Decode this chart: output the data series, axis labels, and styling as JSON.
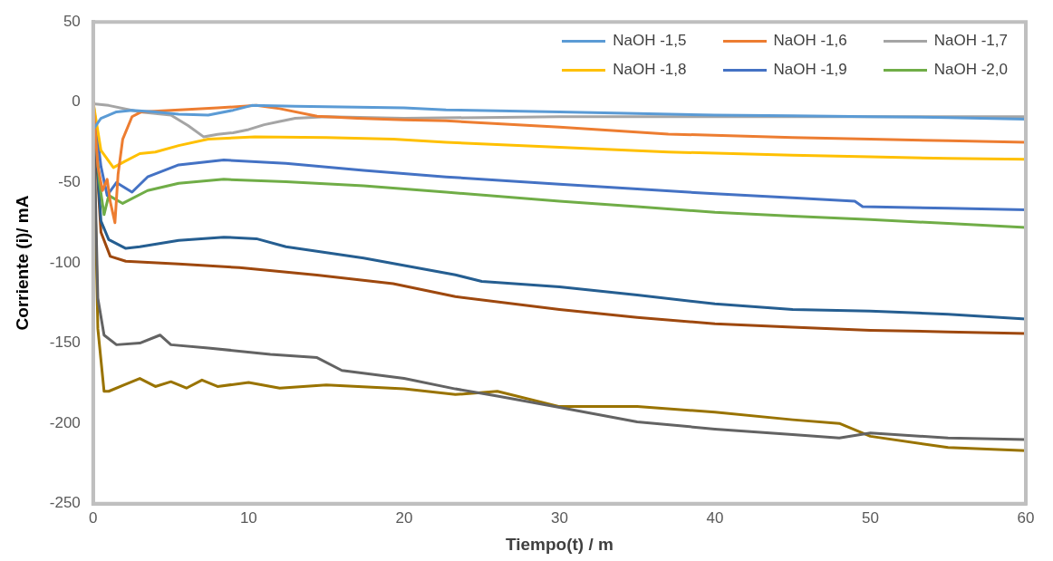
{
  "chart_data": {
    "type": "line",
    "xlabel": "Tiempo(t) / m",
    "ylabel": "Corriente (i)/ mA",
    "xlim": [
      0,
      60
    ],
    "xticks": [
      0,
      10,
      20,
      30,
      40,
      50,
      60
    ],
    "ylim": [
      -250,
      50
    ],
    "yticks": [
      50,
      0,
      -50,
      -100,
      -150,
      -200,
      -250
    ],
    "grid": false,
    "legend": "top right",
    "marker": "none",
    "line_style": "solid",
    "series": [
      {
        "name": "NaOH -1,5",
        "color": "#5b9bd5",
        "x": [
          0,
          0.5,
          1.5,
          2.5,
          4,
          5.5,
          7.4,
          9,
          10.2,
          13,
          16,
          20,
          22.7,
          30,
          35,
          40,
          45,
          50,
          55,
          60
        ],
        "values": [
          -17,
          -10,
          -6,
          -5,
          -6,
          -7.5,
          -8,
          -5,
          -2,
          -2.5,
          -3,
          -3.5,
          -4.7,
          -6,
          -7,
          -8,
          -8.5,
          -9,
          -9.5,
          -10.5
        ]
      },
      {
        "name": "NaOH -1,6",
        "color": "#ed7d31",
        "x": [
          0,
          0.3,
          0.6,
          0.9,
          1.1,
          1.4,
          1.6,
          1.9,
          2.5,
          3.1,
          5,
          8,
          10.5,
          12,
          14.4,
          17,
          20,
          22.7,
          30,
          37,
          45,
          50,
          55,
          60
        ],
        "values": [
          0,
          -40,
          -55,
          -48,
          -62,
          -75,
          -45,
          -23,
          -9,
          -6,
          -5,
          -3.5,
          -2,
          -4,
          -8.7,
          -10,
          -11,
          -11.6,
          -15.5,
          -19.8,
          -22,
          -23,
          -24,
          -25
        ]
      },
      {
        "name": "NaOH -1,7",
        "color": "#a5a5a5",
        "x": [
          0,
          1,
          3,
          5,
          6.1,
          7.1,
          8,
          9,
          10,
          11,
          12,
          13,
          15,
          20,
          25,
          30,
          40,
          50,
          60
        ],
        "values": [
          -1,
          -2,
          -6,
          -8,
          -14.5,
          -21.5,
          -20,
          -19,
          -17,
          -14,
          -12,
          -10,
          -9,
          -10,
          -9.5,
          -9,
          -9,
          -9,
          -9
        ]
      },
      {
        "name": "NaOH -1,8",
        "color": "#ffc000",
        "x": [
          0,
          0.5,
          1.3,
          2,
          3,
          4,
          5.5,
          7.4,
          10.4,
          15,
          19.3,
          22.7,
          30,
          37,
          45,
          50,
          55,
          60
        ],
        "values": [
          0,
          -30,
          -40.7,
          -37,
          -32,
          -31,
          -27,
          -23,
          -21.5,
          -22,
          -23,
          -25,
          -28,
          -31,
          -33,
          -34,
          -35,
          -35.5
        ]
      },
      {
        "name": "NaOH -1,9",
        "color": "#4472c4",
        "x": [
          0,
          0.5,
          0.9,
          1.5,
          2.5,
          3.5,
          5.5,
          8.4,
          12.4,
          17.4,
          22.7,
          30,
          35,
          40,
          45,
          49,
          49.5,
          55,
          60
        ],
        "values": [
          0,
          -40,
          -58,
          -50,
          -56,
          -46.5,
          -39,
          -36,
          -38,
          -42.5,
          -46.5,
          -51,
          -54,
          -57,
          -59.5,
          -61.6,
          -65,
          -66,
          -67
        ]
      },
      {
        "name": "NaOH -2,0",
        "color": "#70ad47",
        "x": [
          0,
          0.4,
          0.7,
          1,
          1.9,
          3.5,
          5.5,
          8.4,
          12.4,
          17.4,
          22.7,
          30,
          35,
          40,
          45,
          50,
          55,
          60
        ],
        "values": [
          0,
          -50,
          -70,
          -58,
          -63,
          -55,
          -50.5,
          -48,
          -49.5,
          -52,
          -56,
          -61.6,
          -65,
          -68.6,
          -71,
          -73,
          -75.5,
          -78
        ]
      },
      {
        "color": "#255e91",
        "x": [
          0,
          0.5,
          1,
          2.1,
          3,
          5.5,
          8.4,
          10.5,
          12.4,
          17.4,
          23.3,
          25,
          30,
          35,
          40,
          45,
          50,
          55,
          60
        ],
        "values": [
          0,
          -74,
          -85.5,
          -91,
          -90,
          -86,
          -84,
          -85,
          -90,
          -97,
          -107.5,
          -111.6,
          -115,
          -120,
          -125.6,
          -129,
          -130,
          -132,
          -135
        ]
      },
      {
        "color": "#9e480e",
        "x": [
          0,
          0.5,
          1.1,
          2.1,
          5.5,
          9.4,
          14.4,
          19.3,
          23.3,
          30,
          35,
          40,
          45,
          50,
          55,
          60
        ],
        "values": [
          0,
          -81,
          -96,
          -99,
          -100.7,
          -103,
          -107.6,
          -113,
          -121,
          -129,
          -134,
          -138,
          -140,
          -142,
          -143,
          -144
        ]
      },
      {
        "color": "#636363",
        "x": [
          0,
          0.3,
          0.7,
          1.5,
          3,
          4.3,
          5,
          7.4,
          11.4,
          14.4,
          16,
          20,
          23.3,
          26,
          30,
          35,
          40,
          45,
          48,
          50,
          55,
          60
        ],
        "values": [
          0,
          -122,
          -145,
          -151,
          -150,
          -145,
          -151,
          -153,
          -157,
          -159,
          -167,
          -172,
          -178.5,
          -183,
          -190,
          -199,
          -203.5,
          -207,
          -209,
          -206,
          -209,
          -210
        ]
      },
      {
        "color": "#997300",
        "x": [
          0,
          0.3,
          0.7,
          1,
          2,
          3,
          4,
          5,
          6,
          7,
          8,
          10,
          12,
          15,
          20,
          23.3,
          26,
          30,
          35,
          40,
          45,
          48,
          50,
          55,
          60
        ],
        "values": [
          0,
          -141,
          -180,
          -180,
          -176,
          -172,
          -177,
          -174,
          -178,
          -173,
          -177,
          -174.5,
          -178,
          -176,
          -178.5,
          -182,
          -180,
          -189.5,
          -189.5,
          -193,
          -197.7,
          -200,
          -208,
          -215,
          -217
        ]
      }
    ]
  }
}
